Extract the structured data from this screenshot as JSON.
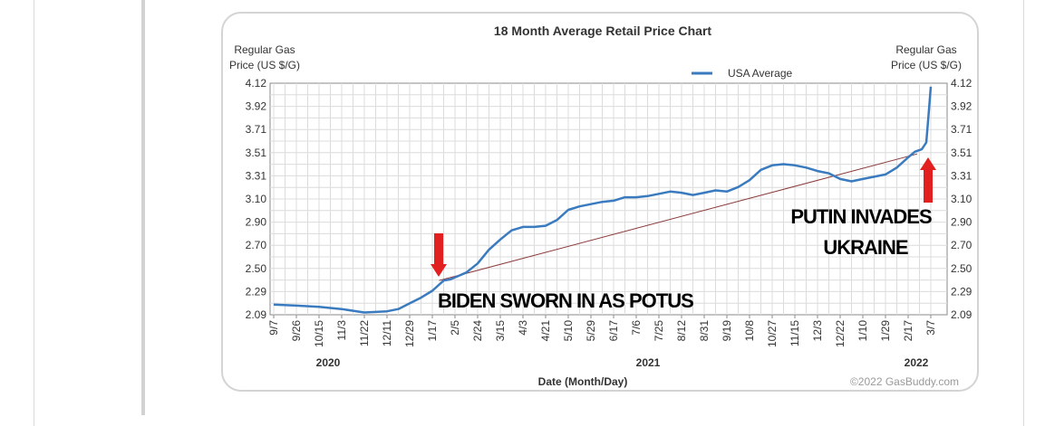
{
  "chart_data": {
    "type": "line",
    "title": "18 Month Average Retail Price Chart",
    "ylabel_left": [
      "Regular Gas",
      "Price (US $/G)"
    ],
    "ylabel_right": [
      "Regular Gas",
      "Price (US $/G)"
    ],
    "xlabel": "Date (Month/Day)",
    "y_ticks": [
      "4.12",
      "3.92",
      "3.71",
      "3.51",
      "3.31",
      "3.10",
      "2.90",
      "2.70",
      "2.50",
      "2.29",
      "2.09"
    ],
    "ylim": [
      2.09,
      4.12
    ],
    "x_ticks": [
      "9/7",
      "9/26",
      "10/15",
      "11/3",
      "11/22",
      "12/11",
      "12/29",
      "1/17",
      "2/5",
      "2/24",
      "3/15",
      "4/3",
      "4/21",
      "5/10",
      "5/29",
      "6/17",
      "7/6",
      "7/25",
      "8/12",
      "8/31",
      "9/19",
      "10/8",
      "10/27",
      "11/15",
      "12/3",
      "12/22",
      "1/10",
      "1/29",
      "2/17",
      "3/7"
    ],
    "years": [
      "2020",
      "2021",
      "2022"
    ],
    "grid": true,
    "legend_position": "top-center",
    "series": [
      {
        "name": "USA Average",
        "color": "#3a7bbf",
        "x": [
          0,
          1,
          2,
          3,
          4,
          5,
          5.5,
          6,
          6.5,
          7,
          7.5,
          7.8,
          8.5,
          9,
          9.5,
          10,
          10.5,
          11,
          11.5,
          12,
          12.5,
          13,
          13.5,
          14,
          14.5,
          15,
          15.5,
          16,
          16.5,
          17,
          17.5,
          18,
          18.5,
          19,
          19.5,
          20,
          20.5,
          21,
          21.5,
          22,
          22.5,
          23,
          23.5,
          24,
          24.5,
          25,
          25.5,
          26,
          26.5,
          27,
          27.5,
          28,
          28.3,
          28.6,
          28.8,
          28.9,
          29.0
        ],
        "values": [
          2.18,
          2.17,
          2.16,
          2.14,
          2.11,
          2.12,
          2.14,
          2.19,
          2.24,
          2.3,
          2.39,
          2.4,
          2.46,
          2.54,
          2.66,
          2.75,
          2.83,
          2.86,
          2.86,
          2.87,
          2.92,
          3.01,
          3.04,
          3.06,
          3.08,
          3.09,
          3.12,
          3.12,
          3.13,
          3.15,
          3.17,
          3.16,
          3.14,
          3.16,
          3.18,
          3.17,
          3.21,
          3.27,
          3.36,
          3.4,
          3.41,
          3.4,
          3.38,
          3.35,
          3.33,
          3.28,
          3.26,
          3.28,
          3.3,
          3.32,
          3.38,
          3.47,
          3.52,
          3.54,
          3.6,
          3.84,
          4.09
        ]
      }
    ],
    "trend_line": {
      "x": [
        7.3,
        28.4
      ],
      "values": [
        2.39,
        3.5
      ]
    },
    "annotations": [
      {
        "text": "BIDEN SWORN IN AS POTUS",
        "x": 7.3,
        "y": 2.39
      },
      {
        "text": "PUTIN INVADES",
        "x": 28.4,
        "y": 3.53
      },
      {
        "text": "UKRAINE",
        "x": 28.4,
        "y": 3.53
      }
    ],
    "copyright": "©2022 GasBuddy.com"
  }
}
